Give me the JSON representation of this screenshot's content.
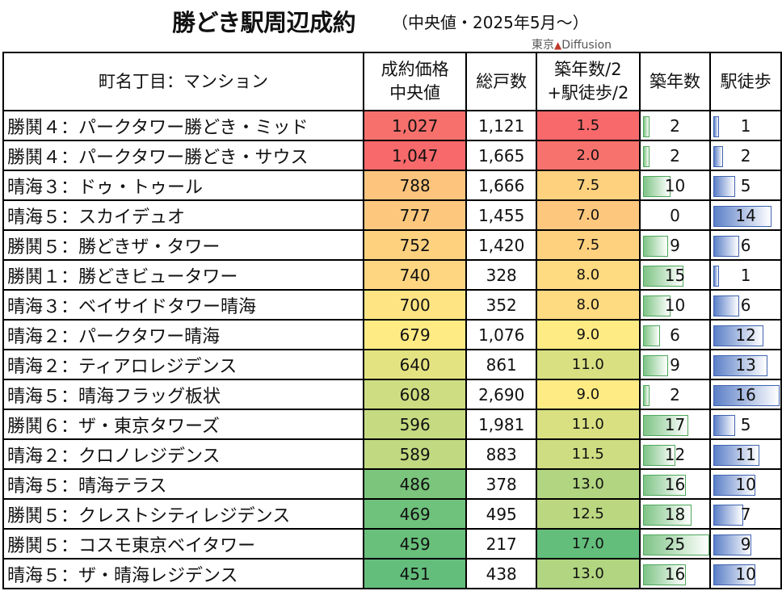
{
  "header": {
    "title": "勝どき駅周辺成約",
    "subtitle": "（中央値・2025年5月〜）",
    "brand_text": "東京",
    "brand_name": "Diffusion"
  },
  "chart_data": {
    "type": "table",
    "columns": [
      "町名丁目：マンション",
      "成約価格中央値",
      "総戸数",
      "築年数/2+駅徒歩/2",
      "築年数",
      "駅徒歩"
    ],
    "column_lines": [
      [
        "町名丁目：マンション"
      ],
      [
        "成約価格",
        "中央値"
      ],
      [
        "総戸数"
      ],
      [
        "築年数/2",
        "+駅徒歩/2"
      ],
      [
        "築年数"
      ],
      [
        "駅徒歩"
      ]
    ],
    "rows": [
      {
        "name": "勝鬨４：パークタワー勝どき・ミッド",
        "price": "1,027",
        "units": "1,121",
        "score": "1.5",
        "age": 2,
        "walk": 1
      },
      {
        "name": "勝鬨４：パークタワー勝どき・サウス",
        "price": "1,047",
        "units": "1,665",
        "score": "2.0",
        "age": 2,
        "walk": 2
      },
      {
        "name": "晴海３：ドゥ・トゥール",
        "price": "788",
        "units": "1,666",
        "score": "7.5",
        "age": 10,
        "walk": 5
      },
      {
        "name": "晴海５：スカイデュオ",
        "price": "777",
        "units": "1,455",
        "score": "7.0",
        "age": 0,
        "walk": 14
      },
      {
        "name": "勝鬨５：勝どきザ・タワー",
        "price": "752",
        "units": "1,420",
        "score": "7.5",
        "age": 9,
        "walk": 6
      },
      {
        "name": "勝鬨１：勝どきビュータワー",
        "price": "740",
        "units": "328",
        "score": "8.0",
        "age": 15,
        "walk": 1
      },
      {
        "name": "晴海３：ベイサイドタワー晴海",
        "price": "700",
        "units": "352",
        "score": "8.0",
        "age": 10,
        "walk": 6
      },
      {
        "name": "晴海２：パークタワー晴海",
        "price": "679",
        "units": "1,076",
        "score": "9.0",
        "age": 6,
        "walk": 12
      },
      {
        "name": "晴海２：ティアロレジデンス",
        "price": "640",
        "units": "861",
        "score": "11.0",
        "age": 9,
        "walk": 13
      },
      {
        "name": "晴海５：晴海フラッグ板状",
        "price": "608",
        "units": "2,690",
        "score": "9.0",
        "age": 2,
        "walk": 16
      },
      {
        "name": "勝鬨６：ザ・東京タワーズ",
        "price": "596",
        "units": "1,981",
        "score": "11.0",
        "age": 17,
        "walk": 5
      },
      {
        "name": "晴海２：クロノレジデンス",
        "price": "589",
        "units": "883",
        "score": "11.5",
        "age": 12,
        "walk": 11
      },
      {
        "name": "晴海５：晴海テラス",
        "price": "486",
        "units": "378",
        "score": "13.0",
        "age": 16,
        "walk": 10
      },
      {
        "name": "勝鬨５：クレストシティレジデンス",
        "price": "469",
        "units": "495",
        "score": "12.5",
        "age": 18,
        "walk": 7
      },
      {
        "name": "勝鬨５：コスモ東京ベイタワー",
        "price": "459",
        "units": "217",
        "score": "17.0",
        "age": 25,
        "walk": 9
      },
      {
        "name": "晴海５：ザ・晴海レジデンス",
        "price": "451",
        "units": "438",
        "score": "13.0",
        "age": 16,
        "walk": 10
      }
    ],
    "color_scale": {
      "low": "#63be7b",
      "mid": "#ffeb84",
      "high": "#f8696b"
    },
    "bar_colors": {
      "age": "#7fc486",
      "walk": "#5b7fc7"
    },
    "age_max": 25,
    "walk_max": 16
  }
}
